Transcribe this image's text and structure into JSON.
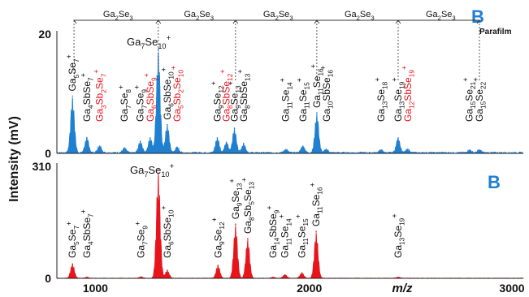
{
  "chart_data": [
    {
      "type": "area",
      "panel_label": "B",
      "annotation": "Parafilm",
      "color": "#1f7fd0",
      "xlabel": "",
      "ylabel": "",
      "xlim": [
        820,
        3000
      ],
      "ylim": [
        0,
        20
      ],
      "y_ticks": [
        "20",
        "0"
      ],
      "bracket_label": "Ga2Se3",
      "bracket_x": [
        900,
        1294,
        1655,
        2035,
        2415,
        2795
      ],
      "peaks": [
        {
          "x": 893,
          "y": 9.6,
          "label": "Ga5Se7+",
          "red": false
        },
        {
          "x": 960,
          "y": 2.6,
          "label": "Ga4SbSe7+",
          "red": false
        },
        {
          "x": 1020,
          "y": 1.2,
          "label": "Ga3Sb2Se7+",
          "red": true
        },
        {
          "x": 1136,
          "y": 0.8,
          "label": "Ga7Se8+",
          "red": false
        },
        {
          "x": 1210,
          "y": 2.0,
          "label": "Ga7Se9+",
          "red": false
        },
        {
          "x": 1256,
          "y": 2.6,
          "label": "Ga6SbSe9+",
          "red": true
        },
        {
          "x": 1294,
          "y": 17.5,
          "label": "Ga7Se10+",
          "red": false
        },
        {
          "x": 1336,
          "y": 4.8,
          "label": "Ga6SbSe10+",
          "red": false
        },
        {
          "x": 1382,
          "y": 1.0,
          "label": "Ga5Sb2Se10+",
          "red": true
        },
        {
          "x": 1570,
          "y": 2.6,
          "label": "Ga9Se12+",
          "red": false
        },
        {
          "x": 1612,
          "y": 1.8,
          "label": "Ga8SbSe12+",
          "red": true
        },
        {
          "x": 1650,
          "y": 4.2,
          "label": "Ga9Se13+",
          "red": false
        },
        {
          "x": 1693,
          "y": 1.6,
          "label": "Ga8SbSe13+",
          "red": false
        },
        {
          "x": 1890,
          "y": 0.6,
          "label": "Ga11Se14+",
          "red": false
        },
        {
          "x": 1970,
          "y": 1.2,
          "label": "Ga11Se15+",
          "red": false
        },
        {
          "x": 2035,
          "y": 6.8,
          "label": "Ga11Se16+",
          "red": false
        },
        {
          "x": 2080,
          "y": 0.6,
          "label": "Ga10SbSe16+",
          "red": false
        },
        {
          "x": 2335,
          "y": 0.5,
          "label": "Ga13Se18+",
          "red": false
        },
        {
          "x": 2415,
          "y": 2.6,
          "label": "Ga13Se19+",
          "red": false
        },
        {
          "x": 2460,
          "y": 0.6,
          "label": "Ga12SbSe19+",
          "red": true
        },
        {
          "x": 2748,
          "y": 0.5,
          "label": "Ga15Se21+",
          "red": false
        },
        {
          "x": 2795,
          "y": 0.5,
          "label": "Ga15Se22+",
          "red": false
        }
      ]
    },
    {
      "type": "area",
      "panel_label": "B",
      "color": "#e8141b",
      "xlabel": "m/z",
      "ylabel": "Intensity (mV)",
      "xlim": [
        820,
        3000
      ],
      "ylim": [
        0,
        310
      ],
      "y_ticks": [
        "310",
        "0"
      ],
      "x_ticks": [
        "1000",
        "2000",
        "3000"
      ],
      "peaks": [
        {
          "x": 893,
          "y": 40,
          "label": "Ga5Se7+",
          "red": false
        },
        {
          "x": 960,
          "y": 3,
          "label": "Ga4SbSe7+",
          "red": false
        },
        {
          "x": 1214,
          "y": 4,
          "label": "Ga7Se9+",
          "red": false
        },
        {
          "x": 1294,
          "y": 300,
          "label": "Ga7Se10+",
          "red": false
        },
        {
          "x": 1336,
          "y": 22,
          "label": "Ga6SbSe10+",
          "red": false
        },
        {
          "x": 1573,
          "y": 36,
          "label": "Ga9Se12+",
          "red": false
        },
        {
          "x": 1655,
          "y": 150,
          "label": "Ga9Se13+",
          "red": false
        },
        {
          "x": 1712,
          "y": 110,
          "label": "Ga8Sb5Se13+",
          "red": false
        },
        {
          "x": 1830,
          "y": 3,
          "label": "Ga14SbSe9+",
          "red": false
        },
        {
          "x": 1886,
          "y": 10,
          "label": "Ga11Se14+",
          "red": false
        },
        {
          "x": 1965,
          "y": 15,
          "label": "Ga11Se15+",
          "red": false
        },
        {
          "x": 2032,
          "y": 130,
          "label": "Ga11Se16+",
          "red": false
        },
        {
          "x": 2415,
          "y": 3,
          "label": "Ga13Se19+",
          "red": false
        }
      ]
    }
  ]
}
